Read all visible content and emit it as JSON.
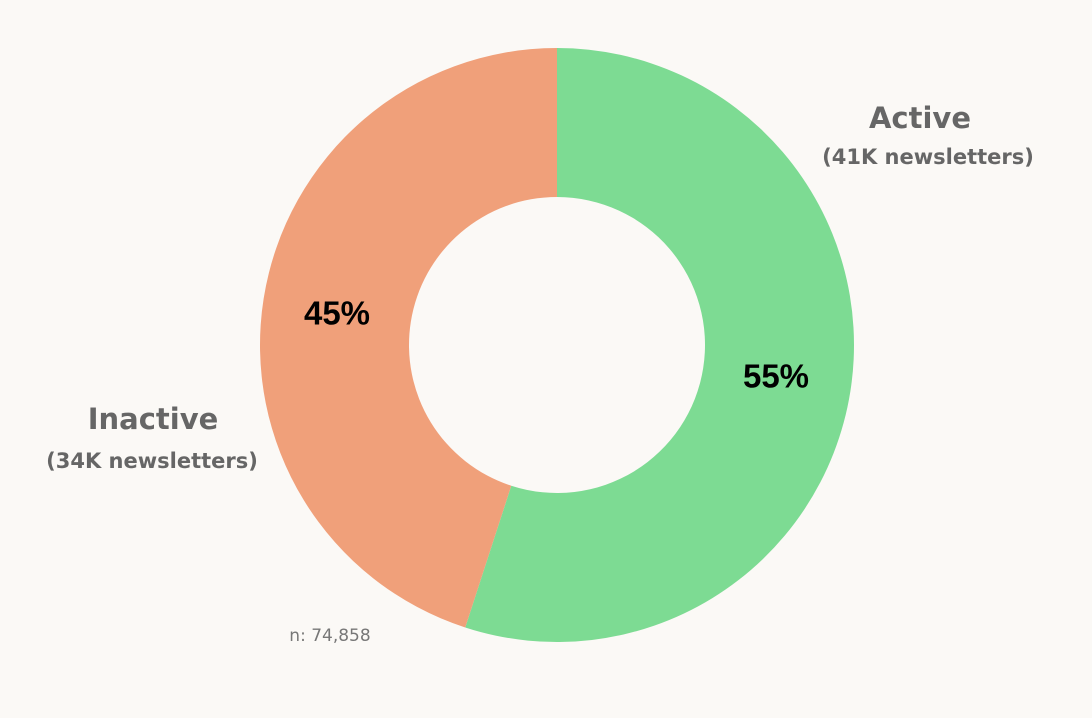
{
  "chart_data": {
    "type": "donut",
    "categories": [
      "Active",
      "Inactive"
    ],
    "category_notes": [
      "(41K newsletters)",
      "(34K newsletters)"
    ],
    "values": [
      55,
      45
    ],
    "value_labels": [
      "55%",
      "45%"
    ],
    "colors": [
      "#7ddb93",
      "#f0a07a"
    ],
    "note": "n: 74,858"
  }
}
